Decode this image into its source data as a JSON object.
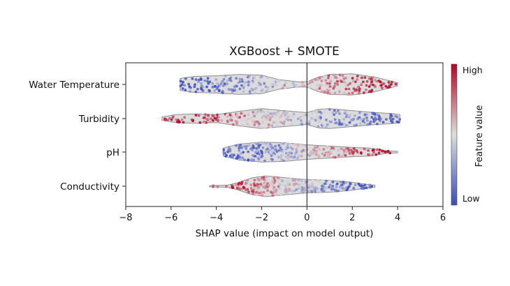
{
  "chart_data": {
    "type": "violin-beeswarm",
    "title": "XGBoost + SMOTE",
    "xlabel": "SHAP value (impact on model output)",
    "xlim": [
      -8,
      6
    ],
    "x_ticks": [
      -8,
      -6,
      -4,
      -2,
      0,
      2,
      4,
      6
    ],
    "features": [
      {
        "name": "Water Temperature",
        "range": [
          -5.6,
          4.0
        ],
        "low_values": "negative",
        "high_values": "positive",
        "profile": [
          [
            -5.6,
            0.45
          ],
          [
            -5.0,
            0.6
          ],
          [
            -4.0,
            0.65
          ],
          [
            -3.0,
            0.75
          ],
          [
            -2.0,
            0.7
          ],
          [
            -1.2,
            0.35
          ],
          [
            -0.4,
            0.2
          ],
          [
            0.0,
            0.2
          ],
          [
            0.5,
            0.55
          ],
          [
            1.0,
            0.75
          ],
          [
            2.0,
            0.8
          ],
          [
            3.0,
            0.55
          ],
          [
            3.6,
            0.3
          ],
          [
            4.0,
            0.12
          ]
        ]
      },
      {
        "name": "Turbidity",
        "range": [
          -6.4,
          4.1
        ],
        "low_values": "positive",
        "high_values": "negative",
        "profile": [
          [
            -6.4,
            0.12
          ],
          [
            -5.8,
            0.3
          ],
          [
            -5.0,
            0.35
          ],
          [
            -4.0,
            0.3
          ],
          [
            -3.0,
            0.55
          ],
          [
            -2.0,
            0.75
          ],
          [
            -1.0,
            0.6
          ],
          [
            0.0,
            0.45
          ],
          [
            0.5,
            0.7
          ],
          [
            1.0,
            0.75
          ],
          [
            2.0,
            0.6
          ],
          [
            3.0,
            0.45
          ],
          [
            3.6,
            0.4
          ],
          [
            4.1,
            0.3
          ]
        ]
      },
      {
        "name": "pH",
        "range": [
          -3.7,
          4.0
        ],
        "low_values": "negative",
        "high_values": "positive",
        "profile": [
          [
            -3.7,
            0.3
          ],
          [
            -3.0,
            0.6
          ],
          [
            -2.0,
            0.75
          ],
          [
            -1.0,
            0.7
          ],
          [
            0.0,
            0.55
          ],
          [
            1.0,
            0.45
          ],
          [
            2.0,
            0.35
          ],
          [
            2.8,
            0.3
          ],
          [
            3.4,
            0.12
          ],
          [
            4.0,
            0.05
          ]
        ]
      },
      {
        "name": "Conductivity",
        "range": [
          -4.3,
          3.0
        ],
        "low_values": "positive",
        "high_values": "negative",
        "profile": [
          [
            -4.3,
            0.05
          ],
          [
            -3.5,
            0.08
          ],
          [
            -3.0,
            0.3
          ],
          [
            -2.4,
            0.65
          ],
          [
            -1.8,
            0.78
          ],
          [
            -1.0,
            0.65
          ],
          [
            0.0,
            0.5
          ],
          [
            1.0,
            0.45
          ],
          [
            2.0,
            0.3
          ],
          [
            2.6,
            0.15
          ],
          [
            3.0,
            0.08
          ]
        ]
      }
    ],
    "colorbar": {
      "label": "Feature value",
      "high_label": "High",
      "low_label": "Low",
      "colors": {
        "low": "#3b4cc0",
        "mid": "#dddddd",
        "high": "#b40426"
      }
    },
    "grid": false,
    "legend": "none",
    "violin_fill": "#dcdcdc",
    "violin_edge": "#8c8c8c"
  }
}
